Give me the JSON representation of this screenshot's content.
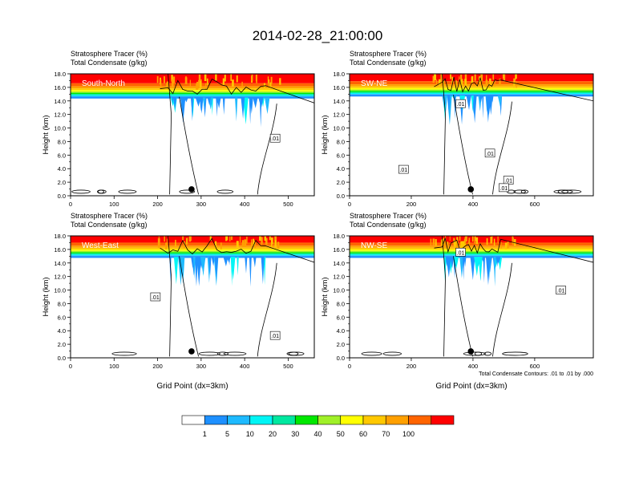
{
  "figure": {
    "title": "2014-02-28_21:00:00",
    "colorbar": {
      "colors": [
        "#ffffff",
        "#1e90ff",
        "#1ebaff",
        "#00f5f5",
        "#00e8a0",
        "#00e800",
        "#a0f028",
        "#ffff00",
        "#ffc800",
        "#ffa000",
        "#ff6400",
        "#ff0000"
      ],
      "labels": [
        "1",
        "5",
        "10",
        "20",
        "30",
        "40",
        "50",
        "60",
        "70",
        "100"
      ]
    }
  },
  "chart_data": [
    {
      "type": "heatmap",
      "panel_label": "South-North",
      "subtitle_1": "Stratosphere Tracer   (%)",
      "subtitle_2": "Total Condensate   (g/kg)",
      "ylabel": "Height (km)",
      "xlabel": "",
      "xlim": [
        0,
        560
      ],
      "ylim": [
        0,
        18
      ],
      "x_ticks": [
        0,
        100,
        200,
        300,
        400,
        500
      ],
      "y_ticks": [
        "0.0",
        "2.0",
        "4.0",
        "6.0",
        "8.0",
        "10.0",
        "12.0",
        "14.0",
        "16.0",
        "18.0"
      ],
      "tracer_base_km": 14.6,
      "marker_x": 278,
      "contour_labels": [
        {
          "text": ".01",
          "x": 470,
          "y": 8.5
        }
      ],
      "footnote": ""
    },
    {
      "type": "heatmap",
      "panel_label": "SW-NE",
      "subtitle_1": "Stratosphere Tracer   (%)",
      "subtitle_2": "Total Condensate   (g/kg)",
      "ylabel": "Height (km)",
      "xlabel": "",
      "xlim": [
        0,
        790
      ],
      "ylim": [
        0,
        18
      ],
      "x_ticks": [
        0,
        200,
        400,
        600
      ],
      "y_ticks": [
        "0.0",
        "2.0",
        "4.0",
        "6.0",
        "8.0",
        "10.0",
        "12.0",
        "14.0",
        "16.0",
        "18.0"
      ],
      "tracer_base_km": 14.9,
      "marker_x": 393,
      "contour_labels": [
        {
          "text": ".01",
          "x": 360,
          "y": 13.6
        },
        {
          "text": ".01",
          "x": 175,
          "y": 3.9
        },
        {
          "text": ".01",
          "x": 455,
          "y": 6.3
        },
        {
          "text": ".01",
          "x": 515,
          "y": 2.3
        },
        {
          "text": ".01",
          "x": 500,
          "y": 1.2
        }
      ],
      "footnote": ""
    },
    {
      "type": "heatmap",
      "panel_label": "West-East",
      "subtitle_1": "Stratosphere Tracer   (%)",
      "subtitle_2": "Total Condensate   (g/kg)",
      "ylabel": "Height (km)",
      "xlabel": "Grid Point (dx=3km)",
      "xlim": [
        0,
        560
      ],
      "ylim": [
        0,
        18
      ],
      "x_ticks": [
        0,
        100,
        200,
        300,
        400,
        500
      ],
      "y_ticks": [
        "0.0",
        "2.0",
        "4.0",
        "6.0",
        "8.0",
        "10.0",
        "12.0",
        "14.0",
        "16.0",
        "18.0"
      ],
      "tracer_base_km": 15.0,
      "marker_x": 278,
      "contour_labels": [
        {
          "text": ".01",
          "x": 195,
          "y": 9.0
        },
        {
          "text": ".01",
          "x": 470,
          "y": 3.3
        }
      ],
      "footnote": ""
    },
    {
      "type": "heatmap",
      "panel_label": "NW-SE",
      "subtitle_1": "Stratosphere Tracer   (%)",
      "subtitle_2": "Total Condensate   (g/kg)",
      "ylabel": "Height (km)",
      "xlabel": "Grid Point (dx=3km)",
      "xlim": [
        0,
        790
      ],
      "ylim": [
        0,
        18
      ],
      "x_ticks": [
        0,
        200,
        400,
        600
      ],
      "y_ticks": [
        "0.0",
        "2.0",
        "4.0",
        "6.0",
        "8.0",
        "10.0",
        "12.0",
        "14.0",
        "16.0",
        "18.0"
      ],
      "tracer_base_km": 15.0,
      "marker_x": 393,
      "contour_labels": [
        {
          "text": ".01",
          "x": 360,
          "y": 15.6
        },
        {
          "text": ".01",
          "x": 685,
          "y": 10.0
        }
      ],
      "footnote": "Total Condensate Contours: .01 to .01 by .000"
    }
  ]
}
